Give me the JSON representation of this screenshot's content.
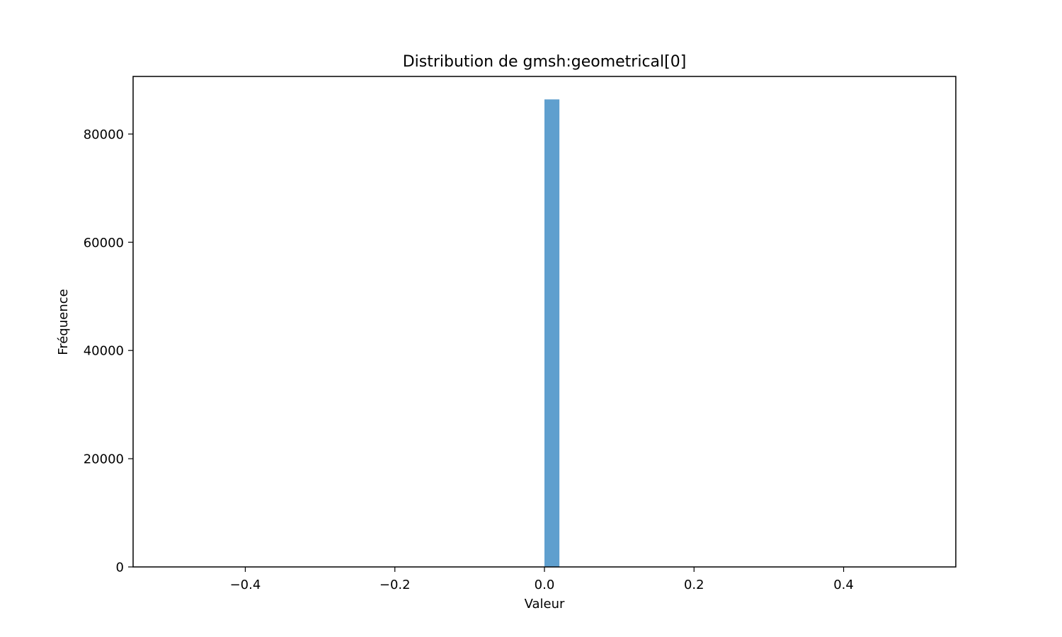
{
  "colors": {
    "bar": "#5f9fce",
    "frame": "#000000",
    "background": "#ffffff"
  },
  "chart_data": {
    "type": "bar",
    "title": "Distribution de gmsh:geometrical[0]",
    "xlabel": "Valeur",
    "ylabel": "Fréquence",
    "xlim": [
      -0.55,
      0.55
    ],
    "ylim": [
      0,
      90640
    ],
    "xticks": [
      -0.4,
      -0.2,
      0.0,
      0.2,
      0.4
    ],
    "xtick_labels": [
      "−0.4",
      "−0.2",
      "0.0",
      "0.2",
      "0.4"
    ],
    "yticks": [
      0,
      20000,
      40000,
      60000,
      80000
    ],
    "ytick_labels": [
      "0",
      "20000",
      "40000",
      "60000",
      "80000"
    ],
    "bins": [
      {
        "x0": 0.0,
        "x1": 0.02,
        "value": 86400
      }
    ],
    "grid": false,
    "legend": "none"
  }
}
